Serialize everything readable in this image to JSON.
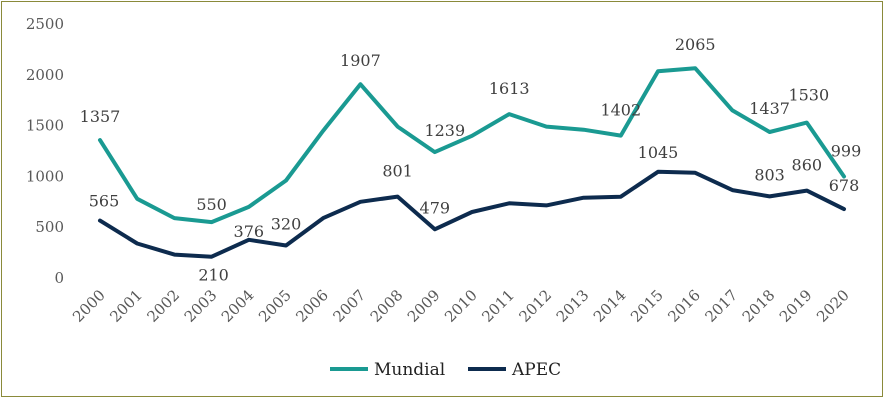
{
  "chart_data": {
    "type": "line",
    "title": "",
    "xlabel": "",
    "ylabel": "",
    "ylim": [
      0,
      2500
    ],
    "yticks": [
      0,
      500,
      1000,
      1500,
      2000,
      2500
    ],
    "ytick_labels": [
      "0",
      "500",
      "1000",
      "1500",
      "2000",
      "2500"
    ],
    "grid": false,
    "legend": "bottom-center",
    "categories": [
      "2000",
      "2001",
      "2002",
      "2003",
      "2004",
      "2005",
      "2006",
      "2007",
      "2008",
      "2009",
      "2010",
      "2011",
      "2012",
      "2013",
      "2014",
      "2015",
      "2016",
      "2017",
      "2018",
      "2019",
      "2020"
    ],
    "series": [
      {
        "name": "Mundial",
        "color": "#1a9a92",
        "values": [
          1357,
          780,
          590,
          550,
          700,
          960,
          1450,
          1907,
          1490,
          1239,
          1400,
          1613,
          1490,
          1460,
          1402,
          2035,
          2065,
          1650,
          1437,
          1530,
          999
        ],
        "labels": [
          {
            "index": 0,
            "text": "1357"
          },
          {
            "index": 3,
            "text": "550"
          },
          {
            "index": 7,
            "text": "1907"
          },
          {
            "index": 9,
            "text": "1239"
          },
          {
            "index": 11,
            "text": "1613"
          },
          {
            "index": 14,
            "text": "1402"
          },
          {
            "index": 16,
            "text": "2065"
          },
          {
            "index": 18,
            "text": "1437"
          },
          {
            "index": 19,
            "text": "1530"
          },
          {
            "index": 20,
            "text": "999"
          }
        ]
      },
      {
        "name": "APEC",
        "color": "#0d2b4e",
        "values": [
          565,
          340,
          230,
          210,
          376,
          320,
          590,
          750,
          801,
          479,
          650,
          735,
          715,
          790,
          800,
          1045,
          1035,
          865,
          803,
          860,
          678
        ],
        "labels": [
          {
            "index": 0,
            "text": "565"
          },
          {
            "index": 3,
            "text": "210"
          },
          {
            "index": 4,
            "text": "376"
          },
          {
            "index": 5,
            "text": "320"
          },
          {
            "index": 8,
            "text": "801"
          },
          {
            "index": 9,
            "text": "479"
          },
          {
            "index": 15,
            "text": "1045"
          },
          {
            "index": 18,
            "text": "803"
          },
          {
            "index": 19,
            "text": "860"
          },
          {
            "index": 20,
            "text": "678"
          }
        ]
      }
    ]
  }
}
